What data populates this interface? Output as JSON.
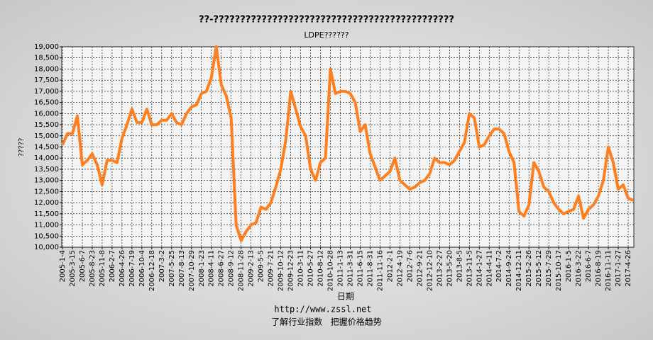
{
  "chart_data": {
    "type": "line",
    "title": "??-?????????????????????????????????????????????",
    "subtitle": "LDPE??????",
    "y_label": "?????",
    "x_label": "日期",
    "footer_url": "http://www.zssl.net",
    "footer_slogan": "了解行业指数   把握价格趋势",
    "color": "#ff7f1e",
    "grid": true,
    "ylim": [
      10000,
      19000
    ],
    "yticks": [
      {
        "value": 10000,
        "label": "10,000"
      },
      {
        "value": 10500,
        "label": "10,500"
      },
      {
        "value": 11000,
        "label": "11,000"
      },
      {
        "value": 11500,
        "label": "11,500"
      },
      {
        "value": 12000,
        "label": "12,000"
      },
      {
        "value": 12500,
        "label": "12,500"
      },
      {
        "value": 13000,
        "label": "13,000"
      },
      {
        "value": 13500,
        "label": "13,500"
      },
      {
        "value": 14000,
        "label": "14,000"
      },
      {
        "value": 14500,
        "label": "14,500"
      },
      {
        "value": 15000,
        "label": "15,000"
      },
      {
        "value": 15500,
        "label": "15,500"
      },
      {
        "value": 16000,
        "label": "16,000"
      },
      {
        "value": 16500,
        "label": "16,500"
      },
      {
        "value": 17000,
        "label": "17,000"
      },
      {
        "value": 17500,
        "label": "17,500"
      },
      {
        "value": 18000,
        "label": "18,000"
      },
      {
        "value": 18500,
        "label": "18,500"
      },
      {
        "value": 19000,
        "label": "19,000"
      }
    ],
    "categories": [
      "2005-1-4",
      null,
      "2005-3-15",
      null,
      "2005-6-7",
      null,
      "2005-8-23",
      null,
      "2005-11-8",
      null,
      "2006-2-7",
      null,
      "2006-4-26",
      null,
      "2006-7-19",
      null,
      "2006-10-4",
      null,
      "2006-12-18",
      null,
      "2007-3-2",
      null,
      "2007-5-25",
      null,
      "2007-8-13",
      null,
      "2007-10-29",
      null,
      "2008-1-23",
      null,
      "2008-4-11",
      null,
      "2008-6-27",
      null,
      "2008-9-12",
      null,
      "2008-11-28",
      null,
      "2009-2-13",
      null,
      "2009-5-5",
      null,
      "2009-7-21",
      null,
      "2009-10-12",
      null,
      "2009-12-23",
      null,
      "2010-3-11",
      null,
      "2010-5-27",
      null,
      "2010-8-12",
      null,
      "2010-10-28",
      null,
      "2011-1-13",
      null,
      "2011-3-31",
      null,
      "2011-6-15",
      null,
      "2011-8-31",
      null,
      "2011-11-16",
      null,
      "2012-2-1",
      null,
      "2012-4-19",
      null,
      "2012-7-6",
      null,
      "2012-9-21",
      null,
      "2012-12-10",
      null,
      "2013-2-27",
      null,
      "2013-5-20",
      null,
      "2013-8-5",
      null,
      "2013-11-5",
      null,
      "2014-1-27",
      null,
      "2014-4-11",
      null,
      "2014-7-2",
      null,
      "2014-9-24",
      null,
      "2014-12-11",
      null,
      "2015-2-26",
      null,
      "2015-5-12",
      null,
      "2015-7-29",
      null,
      "2015-10-17",
      null,
      "2016-1-5",
      null,
      "2016-3-22",
      null,
      "2016-6-7",
      null,
      "2016-8-19",
      null,
      "2016-11-11",
      null,
      "2017-1-27",
      null,
      "2017-4-26",
      null
    ],
    "values": [
      14600,
      15100,
      15100,
      15900,
      13700,
      13900,
      14200,
      13700,
      12800,
      13900,
      13900,
      13800,
      14900,
      15500,
      16200,
      15600,
      15600,
      16200,
      15500,
      15500,
      15700,
      15700,
      16000,
      15600,
      15500,
      16000,
      16300,
      16400,
      16900,
      17000,
      17600,
      19000,
      17300,
      16800,
      15800,
      11000,
      10300,
      10700,
      11000,
      11100,
      11800,
      11700,
      12000,
      12700,
      13500,
      14800,
      17000,
      16200,
      15400,
      15000,
      13500,
      13000,
      13800,
      14000,
      18000,
      16900,
      17000,
      17000,
      16900,
      16500,
      15200,
      15500,
      14200,
      13600,
      13000,
      13200,
      13400,
      14000,
      13000,
      12800,
      12600,
      12700,
      12900,
      13000,
      13300,
      14000,
      13800,
      13800,
      13700,
      13900,
      14300,
      14700,
      16000,
      15800,
      14500,
      14600,
      15000,
      15300,
      15300,
      15100,
      14300,
      13800,
      11600,
      11400,
      11900,
      13800,
      13400,
      12700,
      12500,
      12000,
      11700,
      11500,
      11600,
      11700,
      12300,
      11300,
      11700,
      11900,
      12300,
      13000,
      14500,
      13800,
      12600,
      12800,
      12200,
      12100
    ]
  }
}
